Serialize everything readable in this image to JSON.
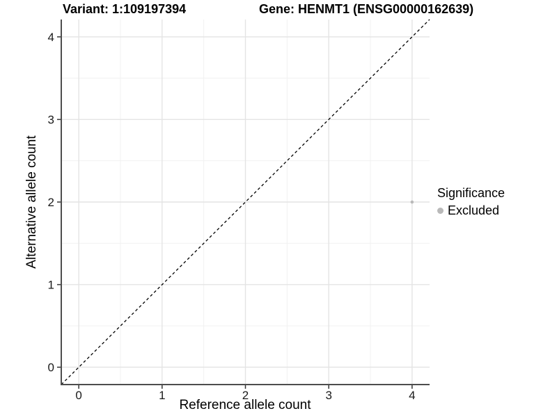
{
  "header": {
    "variant_title": "Variant: 1:109197394",
    "gene_title": "Gene: HENMT1 (ENSG00000162639)"
  },
  "legend": {
    "title": "Significance",
    "items": [
      {
        "label": "Excluded",
        "color": "#b9b9b9"
      }
    ]
  },
  "axes": {
    "x_label": "Reference allele count",
    "y_label": "Alternative allele count",
    "x_tick_labels": [
      "0",
      "1",
      "2",
      "3",
      "4"
    ],
    "y_tick_labels": [
      "0",
      "1",
      "2",
      "3",
      "4"
    ]
  },
  "colors": {
    "background": "#ffffff",
    "grid_major": "#e4e4e4",
    "grid_minor": "#f1f1f1",
    "axis_line": "#4d4d4d",
    "tick_mark": "#333333",
    "tick_text": "#1a1a1a",
    "point": "#b9b9b9",
    "reference_line": "#000000"
  },
  "chart_data": {
    "type": "scatter",
    "title_left": "Variant: 1:109197394",
    "title_right": "Gene: HENMT1 (ENSG00000162639)",
    "xlabel": "Reference allele count",
    "ylabel": "Alternative allele count",
    "xlim": [
      -0.21,
      4.21
    ],
    "ylim": [
      -0.21,
      4.21
    ],
    "x_ticks": [
      0,
      1,
      2,
      3,
      4
    ],
    "y_ticks": [
      0,
      1,
      2,
      3,
      4
    ],
    "x_minor_ticks": [
      0.5,
      1.5,
      2.5,
      3.5
    ],
    "y_minor_ticks": [
      0.5,
      1.5,
      2.5,
      3.5
    ],
    "grid": true,
    "legend_title": "Significance",
    "legend_position": "right",
    "series": [
      {
        "name": "Excluded",
        "color": "#b9b9b9",
        "points": [
          {
            "x": 4,
            "y": 2
          }
        ]
      }
    ],
    "reference_line": {
      "slope": 1,
      "intercept": 0,
      "style": "dashed",
      "color": "#000000"
    }
  }
}
